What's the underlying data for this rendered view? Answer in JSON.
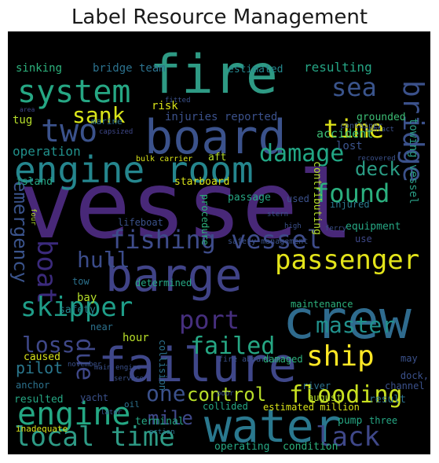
{
  "title": "Label Resource Management",
  "cloud": {
    "background": "#000000",
    "words": [
      {
        "id": "vessel",
        "text": "vessel",
        "color": "#482878"
      },
      {
        "id": "crew",
        "text": "crew",
        "color": "#2f6b8e"
      },
      {
        "id": "fire",
        "text": "fire",
        "color": "#2e9a84"
      },
      {
        "id": "board",
        "text": "board",
        "color": "#3b528b"
      },
      {
        "id": "barge",
        "text": "barge",
        "color": "#404387"
      },
      {
        "id": "failure",
        "text": "failure",
        "color": "#3f4789"
      },
      {
        "id": "water",
        "text": "water",
        "color": "#2a788e"
      },
      {
        "id": "engine-room",
        "text": "engine room",
        "color": "#25868e"
      },
      {
        "id": "fishing-vessel",
        "text": "fishing vessel",
        "color": "#3e4c8a"
      },
      {
        "id": "system",
        "text": "system",
        "color": "#26a784"
      },
      {
        "id": "two",
        "text": "two",
        "color": "#3b528b"
      },
      {
        "id": "sea",
        "text": "sea",
        "color": "#3a548c"
      },
      {
        "id": "sank",
        "text": "sank",
        "color": "#d9e51a"
      },
      {
        "id": "time",
        "text": "time",
        "color": "#dee318"
      },
      {
        "id": "bridge",
        "text": "bridge",
        "color": "#3b518b"
      },
      {
        "id": "damage",
        "text": "damage",
        "color": "#22a785"
      },
      {
        "id": "found",
        "text": "found",
        "color": "#2bb07f"
      },
      {
        "id": "deck",
        "text": "deck",
        "color": "#2a9c84"
      },
      {
        "id": "passenger",
        "text": "passenger",
        "color": "#e3e41a"
      },
      {
        "id": "boat",
        "text": "boat",
        "color": "#3b2a7c"
      },
      {
        "id": "hull",
        "text": "hull",
        "color": "#3b4c8a"
      },
      {
        "id": "emergency",
        "text": "emergency",
        "color": "#3a538b"
      },
      {
        "id": "skipper",
        "text": "skipper",
        "color": "#1f9e89"
      },
      {
        "id": "port",
        "text": "port",
        "color": "#462f7e"
      },
      {
        "id": "master",
        "text": "master",
        "color": "#21918c"
      },
      {
        "id": "failed",
        "text": "failed",
        "color": "#26a784"
      },
      {
        "id": "loss",
        "text": "loss",
        "color": "#3f4889"
      },
      {
        "id": "ship",
        "text": "ship",
        "color": "#fde725"
      },
      {
        "id": "due",
        "text": "due",
        "color": "#3f4889"
      },
      {
        "id": "one",
        "text": "one",
        "color": "#3b518b"
      },
      {
        "id": "control",
        "text": "control",
        "color": "#b8de29"
      },
      {
        "id": "flooding",
        "text": "flooding",
        "color": "#c8e020"
      },
      {
        "id": "engine",
        "text": "engine",
        "color": "#24a884"
      },
      {
        "id": "mile",
        "text": "mile",
        "color": "#3f4889"
      },
      {
        "id": "local-time",
        "text": "local time",
        "color": "#2e9b86"
      },
      {
        "id": "lack",
        "text": "lack",
        "color": "#3f4889"
      },
      {
        "id": "pilot",
        "text": "pilot",
        "color": "#2a788e"
      },
      {
        "id": "operation",
        "text": "operation",
        "color": "#21918c"
      },
      {
        "id": "accident",
        "text": "accident",
        "color": "#3cbc74"
      },
      {
        "id": "lost",
        "text": "lost",
        "color": "#3b528b"
      },
      {
        "id": "resulting",
        "text": "resulting",
        "color": "#25a585"
      },
      {
        "id": "sinking",
        "text": "sinking",
        "color": "#2db27d"
      },
      {
        "id": "bridge-team",
        "text": "bridge team",
        "color": "#2c728e"
      },
      {
        "id": "estimated",
        "text": "estimated",
        "color": "#24878e"
      },
      {
        "id": "risk",
        "text": "risk",
        "color": "#d8e219"
      },
      {
        "id": "tug",
        "text": "tug",
        "color": "#b5de2b"
      },
      {
        "id": "injuries-reported",
        "text": "injuries reported",
        "color": "#3b518b"
      },
      {
        "id": "marine",
        "text": "marine",
        "color": "#2c728e"
      },
      {
        "id": "grounded",
        "text": "grounded",
        "color": "#3cbc74"
      },
      {
        "id": "contact",
        "text": "contact",
        "color": "#3b518b"
      },
      {
        "id": "towing-vessel",
        "text": "towing vessel",
        "color": "#2a9c84"
      },
      {
        "id": "area",
        "text": "area",
        "color": "#3f4889"
      },
      {
        "id": "fitted",
        "text": "fitted",
        "color": "#3b518b"
      },
      {
        "id": "capsized",
        "text": "capsized",
        "color": "#3f4889"
      },
      {
        "id": "container",
        "text": "container",
        "color": "#3b528b"
      },
      {
        "id": "aft",
        "text": "aft",
        "color": "#b5de2b"
      },
      {
        "id": "bulk-carrier",
        "text": "bulk carrier",
        "color": "#d8e219"
      },
      {
        "id": "recovered",
        "text": "recovered",
        "color": "#3b518b"
      },
      {
        "id": "contributing",
        "text": "contributing",
        "color": "#b5de2b"
      },
      {
        "id": "island",
        "text": "island",
        "color": "#26a784"
      },
      {
        "id": "starboard",
        "text": "starboard",
        "color": "#d8e219"
      },
      {
        "id": "passage",
        "text": "passage",
        "color": "#26a784"
      },
      {
        "id": "used",
        "text": "used",
        "color": "#3b518b"
      },
      {
        "id": "injured",
        "text": "injured",
        "color": "#2a788e"
      },
      {
        "id": "stern",
        "text": "stern",
        "color": "#3b518b"
      },
      {
        "id": "lifeboat",
        "text": "lifeboat",
        "color": "#3b528b"
      },
      {
        "id": "procedure",
        "text": "procedure",
        "color": "#2db27d"
      },
      {
        "id": "high",
        "text": "high",
        "color": "#3b518b"
      },
      {
        "id": "equipment",
        "text": "equipment",
        "color": "#26a784"
      },
      {
        "id": "four",
        "text": "four",
        "color": "#b5de2b"
      },
      {
        "id": "safety-management",
        "text": "safety management",
        "color": "#3b528b"
      },
      {
        "id": "ferry",
        "text": "ferry",
        "color": "#3b518b"
      },
      {
        "id": "use",
        "text": "use",
        "color": "#3f4889"
      },
      {
        "id": "tow",
        "text": "tow",
        "color": "#2c728e"
      },
      {
        "id": "determined",
        "text": "determined",
        "color": "#26a784"
      },
      {
        "id": "bay",
        "text": "bay",
        "color": "#b5de2b"
      },
      {
        "id": "safety",
        "text": "safety",
        "color": "#25848e"
      },
      {
        "id": "maintenance",
        "text": "maintenance",
        "color": "#2db27d"
      },
      {
        "id": "near",
        "text": "near",
        "color": "#2c728e"
      },
      {
        "id": "collision",
        "text": "collision",
        "color": "#2c728e"
      },
      {
        "id": "hour",
        "text": "hour",
        "color": "#b8de29"
      },
      {
        "id": "caused",
        "text": "caused",
        "color": "#d8e219"
      },
      {
        "id": "fire-aboard",
        "text": "fire aboard",
        "color": "#3b518b"
      },
      {
        "id": "damaged",
        "text": "damaged",
        "color": "#2db27d"
      },
      {
        "id": "may",
        "text": "may",
        "color": "#3b518b"
      },
      {
        "id": "november",
        "text": "november",
        "color": "#3b518b"
      },
      {
        "id": "main-engine",
        "text": "main engine",
        "color": "#3b518b"
      },
      {
        "id": "service",
        "text": "service",
        "color": "#3b518b"
      },
      {
        "id": "dock",
        "text": "dock,",
        "color": "#3b518b"
      },
      {
        "id": "channel",
        "text": "channel",
        "color": "#3b518b"
      },
      {
        "id": "river",
        "text": "river",
        "color": "#2c728e"
      },
      {
        "id": "august",
        "text": "august",
        "color": "#b5de2b"
      },
      {
        "id": "result",
        "text": "result",
        "color": "#2c728e"
      },
      {
        "id": "anchor",
        "text": "anchor",
        "color": "#2c728e"
      },
      {
        "id": "resulted",
        "text": "resulted",
        "color": "#26a784"
      },
      {
        "id": "yacht",
        "text": "yacht",
        "color": "#3b518b"
      },
      {
        "id": "poor",
        "text": "poor",
        "color": "#3b518b"
      },
      {
        "id": "oil",
        "text": "oil",
        "color": "#2c728e"
      },
      {
        "id": "later",
        "text": "later",
        "color": "#3b518b"
      },
      {
        "id": "collided",
        "text": "collided",
        "color": "#26a784"
      },
      {
        "id": "estimated-million",
        "text": "estimated million",
        "color": "#d8e219"
      },
      {
        "id": "pump",
        "text": "pump",
        "color": "#26a784"
      },
      {
        "id": "three",
        "text": "three",
        "color": "#26a784"
      },
      {
        "id": "terminal",
        "text": "terminal",
        "color": "#26a784"
      },
      {
        "id": "inadequate",
        "text": "inadequate",
        "color": "#d8e219"
      },
      {
        "id": "action",
        "text": "action",
        "color": "#2c728e"
      },
      {
        "id": "operating",
        "text": "operating",
        "color": "#26a784"
      },
      {
        "id": "condition",
        "text": "condition",
        "color": "#2db27d"
      }
    ]
  }
}
